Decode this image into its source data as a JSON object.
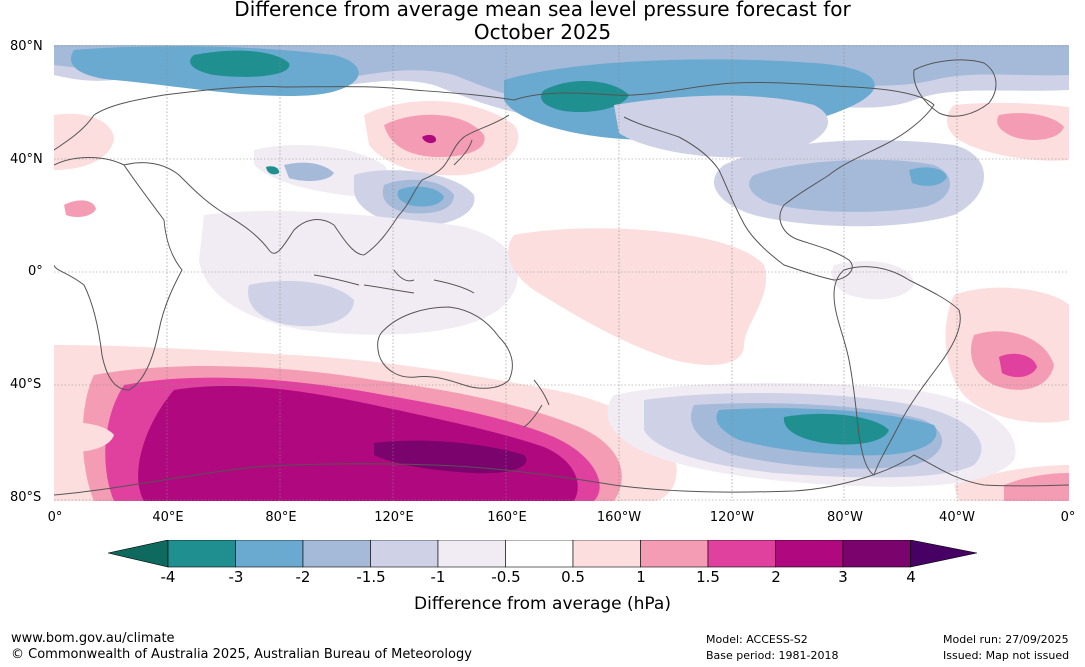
{
  "title": {
    "line1": "Difference from average mean sea level pressure forecast for",
    "line2": "October 2025"
  },
  "axes": {
    "lat_labels": [
      "80°N",
      "40°N",
      "0°",
      "40°S",
      "80°S"
    ],
    "lon_labels": [
      "0°",
      "40°E",
      "80°E",
      "120°E",
      "160°E",
      "160°W",
      "120°W",
      "80°W",
      "40°W",
      "0°"
    ]
  },
  "colorbar": {
    "label": "Difference from average (hPa)",
    "ticks": [
      "-4",
      "-3",
      "-2",
      "-1.5",
      "-1",
      "-0.5",
      "0.5",
      "1",
      "1.5",
      "2",
      "3",
      "4"
    ],
    "colors": [
      "#0e6a5f",
      "#1f8f8f",
      "#6aaad0",
      "#a5bad9",
      "#cfd2e7",
      "#f1ecf4",
      "#ffffff",
      "#fcdede",
      "#f59cb5",
      "#e0409e",
      "#b0087e",
      "#7a036e",
      "#470063"
    ]
  },
  "footer": {
    "url": "www.bom.gov.au/climate",
    "copyright": "© Commonwealth of Australia 2025, Australian Bureau of Meteorology",
    "model": "Model: ACCESS-S2",
    "base_period": "Base period: 1981-2018",
    "model_run": "Model run: 27/09/2025",
    "issued": "Issued: Map not issued"
  }
}
